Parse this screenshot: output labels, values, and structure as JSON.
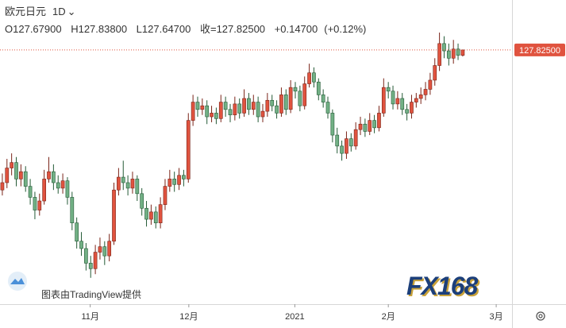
{
  "chart_data": {
    "type": "candlestick",
    "symbol": "欧元日元",
    "interval": "1D",
    "legend": {
      "open_label": "O",
      "open": "127.67900",
      "high_label": "H",
      "high": "127.83800",
      "low_label": "L",
      "low": "127.64700",
      "close_label": "收=",
      "close": "127.82500",
      "change": "+0.14700",
      "change_pct": "(+0.12%)"
    },
    "up_color": "#e0533f",
    "down_color": "#72b085",
    "up_edge": "#7a2418",
    "down_edge": "#245a36",
    "last_price": {
      "value": 127.825,
      "label": "127.82500"
    },
    "last_price_color": "#e0533f",
    "xlim": [
      -0.5,
      109.6
    ],
    "ylim": [
      120.88,
      129.19
    ],
    "xticks": [
      {
        "value": 18.9,
        "label": "11月"
      },
      {
        "value": 40.1,
        "label": "12月"
      },
      {
        "value": 62.9,
        "label": "2021"
      },
      {
        "value": 83.0,
        "label": "2月"
      },
      {
        "value": 106.2,
        "label": "3月"
      }
    ],
    "watermark": "图表由TradingView提供",
    "brand": "FX168",
    "ohlc": [
      [
        124.0,
        124.45,
        123.85,
        124.2
      ],
      [
        124.2,
        124.85,
        124.05,
        124.6
      ],
      [
        124.6,
        125.0,
        124.4,
        124.75
      ],
      [
        124.75,
        124.9,
        124.1,
        124.3
      ],
      [
        124.3,
        124.7,
        124.1,
        124.5
      ],
      [
        124.5,
        124.65,
        123.95,
        124.1
      ],
      [
        124.1,
        124.3,
        123.6,
        123.8
      ],
      [
        123.8,
        123.95,
        123.2,
        123.45
      ],
      [
        123.45,
        123.9,
        123.3,
        123.7
      ],
      [
        123.7,
        124.55,
        123.6,
        124.3
      ],
      [
        124.3,
        124.9,
        124.2,
        124.5
      ],
      [
        124.5,
        124.7,
        124.0,
        124.2
      ],
      [
        124.2,
        124.4,
        123.9,
        124.05
      ],
      [
        124.05,
        124.45,
        123.9,
        124.25
      ],
      [
        124.25,
        124.35,
        123.6,
        123.8
      ],
      [
        123.8,
        123.95,
        122.9,
        123.1
      ],
      [
        123.1,
        123.25,
        122.4,
        122.6
      ],
      [
        122.6,
        122.85,
        122.2,
        122.4
      ],
      [
        122.4,
        122.55,
        121.8,
        122.0
      ],
      [
        122.0,
        122.2,
        121.6,
        121.85
      ],
      [
        121.85,
        122.5,
        121.7,
        122.3
      ],
      [
        122.3,
        122.7,
        122.1,
        122.45
      ],
      [
        122.45,
        122.6,
        121.95,
        122.2
      ],
      [
        122.2,
        122.8,
        122.05,
        122.6
      ],
      [
        122.6,
        124.2,
        122.5,
        124.0
      ],
      [
        124.0,
        124.6,
        123.85,
        124.35
      ],
      [
        124.35,
        124.8,
        124.0,
        124.2
      ],
      [
        124.2,
        124.4,
        123.85,
        124.05
      ],
      [
        124.05,
        124.5,
        123.9,
        124.3
      ],
      [
        124.3,
        124.4,
        123.7,
        123.9
      ],
      [
        123.9,
        124.05,
        123.3,
        123.5
      ],
      [
        123.5,
        123.7,
        123.0,
        123.2
      ],
      [
        123.2,
        123.6,
        123.05,
        123.4
      ],
      [
        123.4,
        123.55,
        122.95,
        123.1
      ],
      [
        123.1,
        123.8,
        122.95,
        123.6
      ],
      [
        123.6,
        124.3,
        123.45,
        124.1
      ],
      [
        124.1,
        124.55,
        123.95,
        124.3
      ],
      [
        124.3,
        124.5,
        123.95,
        124.15
      ],
      [
        124.15,
        124.6,
        124.0,
        124.4
      ],
      [
        124.4,
        124.55,
        124.1,
        124.3
      ],
      [
        124.3,
        126.1,
        124.2,
        125.9
      ],
      [
        125.9,
        126.6,
        125.75,
        126.4
      ],
      [
        126.4,
        126.55,
        126.0,
        126.2
      ],
      [
        126.2,
        126.5,
        126.05,
        126.3
      ],
      [
        126.3,
        126.45,
        125.8,
        126.0
      ],
      [
        126.0,
        126.3,
        125.85,
        126.1
      ],
      [
        126.1,
        126.25,
        125.8,
        125.95
      ],
      [
        125.95,
        126.6,
        125.85,
        126.4
      ],
      [
        126.4,
        126.55,
        126.0,
        126.2
      ],
      [
        126.2,
        126.35,
        125.85,
        126.05
      ],
      [
        126.05,
        126.55,
        125.9,
        126.35
      ],
      [
        126.35,
        126.5,
        125.95,
        126.1
      ],
      [
        126.1,
        126.75,
        126.0,
        126.5
      ],
      [
        126.5,
        126.65,
        126.05,
        126.2
      ],
      [
        126.2,
        126.6,
        126.05,
        126.4
      ],
      [
        126.4,
        126.55,
        125.85,
        126.0
      ],
      [
        126.0,
        126.35,
        125.85,
        126.15
      ],
      [
        126.15,
        126.65,
        126.0,
        126.45
      ],
      [
        126.45,
        126.6,
        126.15,
        126.3
      ],
      [
        126.3,
        126.45,
        125.95,
        126.1
      ],
      [
        126.1,
        126.8,
        126.0,
        126.6
      ],
      [
        126.6,
        126.75,
        126.05,
        126.2
      ],
      [
        126.2,
        127.0,
        126.1,
        126.8
      ],
      [
        126.8,
        126.95,
        126.5,
        126.7
      ],
      [
        126.7,
        126.85,
        126.15,
        126.3
      ],
      [
        126.3,
        127.1,
        126.2,
        126.9
      ],
      [
        126.9,
        127.45,
        126.8,
        127.2
      ],
      [
        127.2,
        127.35,
        126.8,
        126.95
      ],
      [
        126.95,
        127.05,
        126.45,
        126.6
      ],
      [
        126.6,
        126.75,
        126.25,
        126.4
      ],
      [
        126.4,
        126.55,
        125.95,
        126.1
      ],
      [
        126.1,
        126.2,
        125.3,
        125.5
      ],
      [
        125.5,
        125.7,
        125.0,
        125.2
      ],
      [
        125.2,
        125.35,
        124.8,
        125.0
      ],
      [
        125.0,
        125.6,
        124.85,
        125.4
      ],
      [
        125.4,
        125.55,
        125.05,
        125.2
      ],
      [
        125.2,
        125.85,
        125.1,
        125.65
      ],
      [
        125.65,
        126.0,
        125.5,
        125.8
      ],
      [
        125.8,
        125.95,
        125.45,
        125.6
      ],
      [
        125.6,
        126.1,
        125.5,
        125.9
      ],
      [
        125.9,
        126.05,
        125.55,
        125.7
      ],
      [
        125.7,
        126.3,
        125.6,
        126.1
      ],
      [
        126.1,
        127.05,
        126.0,
        126.8
      ],
      [
        126.8,
        126.95,
        126.5,
        126.7
      ],
      [
        126.7,
        126.85,
        126.2,
        126.35
      ],
      [
        126.35,
        126.7,
        126.2,
        126.5
      ],
      [
        126.5,
        126.65,
        126.05,
        126.2
      ],
      [
        126.2,
        126.35,
        125.9,
        126.1
      ],
      [
        126.1,
        126.6,
        125.95,
        126.4
      ],
      [
        126.4,
        126.65,
        126.25,
        126.5
      ],
      [
        126.5,
        126.8,
        126.35,
        126.6
      ],
      [
        126.6,
        126.95,
        126.45,
        126.75
      ],
      [
        126.75,
        127.2,
        126.6,
        127.0
      ],
      [
        127.0,
        127.6,
        126.85,
        127.4
      ],
      [
        127.4,
        128.3,
        127.25,
        128.0
      ],
      [
        128.0,
        128.2,
        127.6,
        127.8
      ],
      [
        127.8,
        128.0,
        127.4,
        127.6
      ],
      [
        127.6,
        128.1,
        127.45,
        127.85
      ],
      [
        127.85,
        128.0,
        127.55,
        127.68
      ],
      [
        127.679,
        127.838,
        127.647,
        127.825
      ]
    ]
  }
}
